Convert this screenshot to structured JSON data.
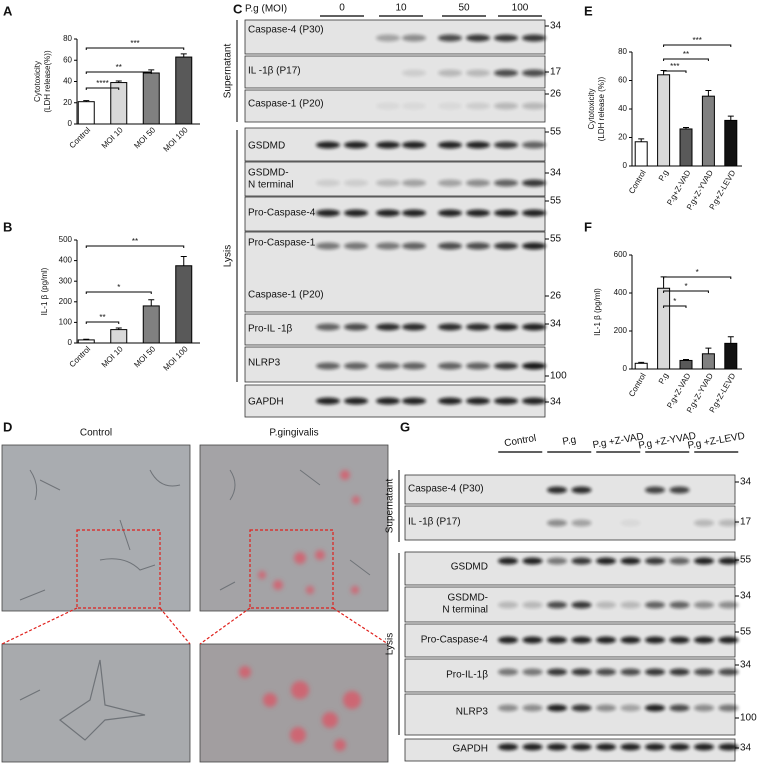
{
  "panel_labels": [
    "A",
    "B",
    "C",
    "D",
    "E",
    "F",
    "G"
  ],
  "chart_data": [
    {
      "type": "bar",
      "ylabel": [
        "Cytotoxicity",
        "(LDH  release(%))"
      ],
      "categories": [
        "Control",
        "MOI 10",
        "MOI 50",
        "MOI 100"
      ],
      "values": [
        21,
        39,
        48,
        63
      ],
      "errors": [
        1,
        1.5,
        3,
        3
      ],
      "colors": [
        "#ffffff",
        "#d9d9d9",
        "#808080",
        "#595959"
      ],
      "ylim": [
        0,
        80
      ],
      "yticks": [
        0,
        20,
        40,
        60,
        80
      ],
      "annotations": [
        "****",
        "**",
        "***"
      ]
    },
    {
      "type": "bar",
      "ylabel": [
        "IL-1 β (pg/ml)"
      ],
      "categories": [
        "Control",
        "MOI 10",
        "MOI 50",
        "MOI 100"
      ],
      "values": [
        15,
        65,
        180,
        375
      ],
      "errors": [
        3,
        8,
        30,
        45
      ],
      "colors": [
        "#ffffff",
        "#d9d9d9",
        "#808080",
        "#595959"
      ],
      "ylim": [
        0,
        500
      ],
      "yticks": [
        0,
        100,
        200,
        300,
        400,
        500
      ],
      "annotations": [
        "**",
        "*",
        "**"
      ]
    },
    {
      "type": "bar",
      "ylabel": [
        "Cytotoxicity",
        "(LDH  release (%))"
      ],
      "categories": [
        "Control",
        "P.g",
        "P.g+Z-VAD",
        "P.g+Z-YVAD",
        "P.g+Z-LEVD"
      ],
      "values": [
        17,
        64,
        26,
        49,
        32
      ],
      "errors": [
        2,
        3,
        1,
        4,
        3
      ],
      "colors": [
        "#ffffff",
        "#d9d9d9",
        "#595959",
        "#808080",
        "#111111"
      ],
      "ylim": [
        0,
        80
      ],
      "yticks": [
        0,
        20,
        40,
        60,
        80
      ],
      "annotations": [
        "***",
        "**",
        "***"
      ]
    },
    {
      "type": "bar",
      "ylabel": [
        "IL-1 β (pg/ml)"
      ],
      "categories": [
        "Control",
        "P.g",
        "P.g+Z-VAD",
        "P.g+Z-YVAD",
        "P.g+Z-LEVD"
      ],
      "values": [
        30,
        425,
        45,
        80,
        135
      ],
      "errors": [
        5,
        60,
        5,
        30,
        35
      ],
      "colors": [
        "#ffffff",
        "#d9d9d9",
        "#595959",
        "#808080",
        "#111111"
      ],
      "ylim": [
        0,
        600
      ],
      "yticks": [
        0,
        200,
        400,
        600
      ],
      "annotations": [
        "*",
        "*",
        "*"
      ]
    }
  ],
  "blot_c": {
    "header": "P.g (MOI)",
    "groups": [
      "0",
      "10",
      "50",
      "100"
    ],
    "sections": [
      {
        "name": "Supernatant",
        "rows": [
          {
            "label": "Caspase-4 (P30)",
            "marker": "34"
          },
          {
            "label": "IL -1β (P17)",
            "marker": "17"
          },
          {
            "label": "Caspase-1 (P20)",
            "marker": "26"
          }
        ]
      },
      {
        "name": "Lysis",
        "rows": [
          {
            "label": "GSDMD",
            "marker": "55"
          },
          {
            "label": [
              "GSDMD-",
              "N terminal"
            ],
            "marker": "34"
          },
          {
            "label": "Pro-Caspase-4",
            "marker": "55"
          },
          {
            "label": "Pro-Caspase-1",
            "marker": "55"
          },
          {
            "label": "Caspase-1 (P20)",
            "marker": "26"
          },
          {
            "label": "Pro-IL -1β",
            "marker": "34"
          },
          {
            "label": "NLRP3",
            "marker": "100"
          }
        ]
      }
    ],
    "loading_control": {
      "label": "GAPDH",
      "marker": "34"
    }
  },
  "microscopy_d": {
    "titles": [
      "Control",
      "P.gingivalis"
    ]
  },
  "blot_g": {
    "groups": [
      "Control",
      "P.g",
      "P.g +Z-VAD",
      "P.g +Z-YVAD",
      "P.g +Z-LEVD"
    ],
    "sections": [
      {
        "name": "Supernatant",
        "rows": [
          {
            "label": "Caspase-4 (P30)",
            "marker": "34"
          },
          {
            "label": "IL -1β (P17)",
            "marker": "17"
          }
        ]
      },
      {
        "name": "Lysis",
        "rows": [
          {
            "label": "GSDMD",
            "marker": "55"
          },
          {
            "label": [
              "GSDMD-",
              "N terminal"
            ],
            "marker": "34"
          },
          {
            "label": "Pro-Caspase-4",
            "marker": "55"
          },
          {
            "label": "Pro-IL-1β",
            "marker": "34"
          },
          {
            "label": "NLRP3",
            "marker": "100"
          }
        ]
      }
    ],
    "loading_control": {
      "label": "GAPDH",
      "marker": "34"
    }
  }
}
